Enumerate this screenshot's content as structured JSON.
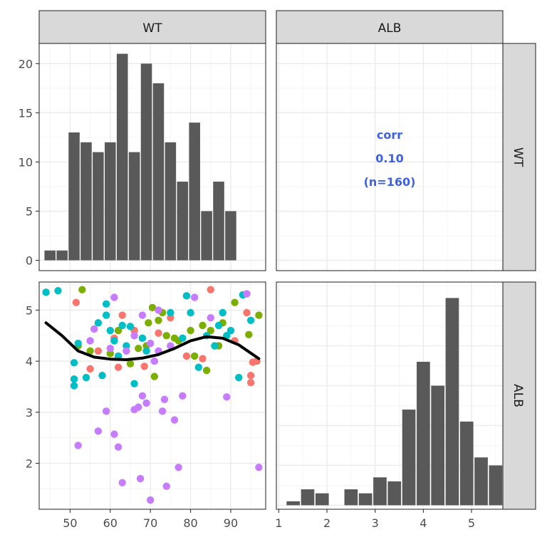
{
  "strips": {
    "col1": "WT",
    "col2": "ALB",
    "row1": "WT",
    "row2": "ALB"
  },
  "corr_text": {
    "label": "corr",
    "value": "0.10",
    "n": "(n=160)"
  },
  "colors": {
    "bar": "#595959",
    "smooth": "#000000",
    "corr": "#3d61e6",
    "groups": [
      "#F8766D",
      "#7CAE00",
      "#00BFC4",
      "#C77CFF"
    ]
  },
  "chart_data": [
    {
      "panel": "WT-WT",
      "type": "bar",
      "x_centers": [
        45,
        48,
        51,
        54,
        57,
        60,
        63,
        66,
        69,
        72,
        75,
        78,
        81,
        84,
        87,
        90,
        93
      ],
      "values": [
        1,
        1,
        13,
        12,
        11,
        12,
        21,
        11,
        20,
        18,
        12,
        8,
        14,
        5,
        8,
        5,
        0
      ],
      "xlim": [
        42.3,
        98.7
      ],
      "ylim": [
        -1.05,
        22.05
      ],
      "xticks": [
        50,
        60,
        70,
        80,
        90
      ],
      "yticks": [
        0,
        5,
        10,
        15,
        20
      ]
    },
    {
      "panel": "WT-ALB",
      "type": "text",
      "text": [
        "corr",
        "0.10",
        "(n=160)"
      ]
    },
    {
      "panel": "ALB-WT",
      "type": "scatter",
      "x_label_var": "WT",
      "y_label_var": "ALB",
      "xlim": [
        42.3,
        98.7
      ],
      "ylim": [
        1.1,
        5.55
      ],
      "xticks": [
        50,
        60,
        70,
        80,
        90
      ],
      "yticks": [
        2,
        3,
        4,
        5
      ],
      "series": [
        {
          "group": 1,
          "points": [
            [
              51.5,
              5.15
            ],
            [
              61,
              4.45
            ],
            [
              63,
              4.9
            ],
            [
              66,
              4.6
            ],
            [
              62,
              3.88
            ],
            [
              72,
              4.55
            ],
            [
              75,
              4.85
            ],
            [
              85,
              5.4
            ],
            [
              91,
              4.4
            ],
            [
              94,
              4.95
            ],
            [
              95,
              3.72
            ],
            [
              95,
              3.58
            ],
            [
              95.5,
              3.98
            ],
            [
              96.5,
              4.0
            ],
            [
              68.5,
              3.9
            ],
            [
              57,
              4.2
            ],
            [
              55,
              3.85
            ],
            [
              83,
              4.05
            ],
            [
              79,
              4.1
            ]
          ]
        },
        {
          "group": 2,
          "points": [
            [
              53,
              5.4
            ],
            [
              69.5,
              4.75
            ],
            [
              70.5,
              5.05
            ],
            [
              72,
              4.8
            ],
            [
              74,
              4.5
            ],
            [
              76,
              4.45
            ],
            [
              81,
              4.1
            ],
            [
              83,
              4.7
            ],
            [
              85,
              4.6
            ],
            [
              88,
              4.75
            ],
            [
              91,
              5.15
            ],
            [
              94.5,
              4.52
            ],
            [
              97,
              4.9
            ],
            [
              69,
              4.3
            ],
            [
              71,
              3.7
            ],
            [
              55,
              4.2
            ],
            [
              52,
              4.3
            ],
            [
              60,
              4.15
            ],
            [
              65,
              3.95
            ],
            [
              73,
              4.95
            ],
            [
              80,
              4.6
            ],
            [
              84,
              3.82
            ],
            [
              87,
              4.3
            ],
            [
              77,
              4.4
            ],
            [
              62,
              4.6
            ],
            [
              67,
              4.25
            ]
          ]
        },
        {
          "group": 3,
          "points": [
            [
              44,
              5.35
            ],
            [
              47,
              5.38
            ],
            [
              51,
              3.65
            ],
            [
              51,
              3.52
            ],
            [
              51,
              3.97
            ],
            [
              52,
              4.35
            ],
            [
              54,
              3.68
            ],
            [
              57,
              4.75
            ],
            [
              59,
              4.9
            ],
            [
              59,
              5.12
            ],
            [
              60,
              4.6
            ],
            [
              61,
              4.4
            ],
            [
              63,
              4.7
            ],
            [
              64,
              4.3
            ],
            [
              66,
              3.56
            ],
            [
              68,
              4.45
            ],
            [
              69,
              4.2
            ],
            [
              75,
              4.95
            ],
            [
              78,
              4.45
            ],
            [
              79,
              5.28
            ],
            [
              80,
              4.95
            ],
            [
              82,
              3.88
            ],
            [
              84,
              4.5
            ],
            [
              87,
              4.7
            ],
            [
              88,
              4.95
            ],
            [
              89,
              4.5
            ],
            [
              90,
              4.6
            ],
            [
              92,
              3.68
            ],
            [
              93,
              5.3
            ],
            [
              95,
              4.8
            ],
            [
              58,
              3.72
            ],
            [
              62,
              4.1
            ],
            [
              65,
              4.68
            ],
            [
              86,
              4.3
            ]
          ]
        },
        {
          "group": 4,
          "points": [
            [
              52,
              2.35
            ],
            [
              56,
              4.63
            ],
            [
              55,
              4.4
            ],
            [
              57,
              2.63
            ],
            [
              59,
              3.02
            ],
            [
              60,
              4.25
            ],
            [
              61,
              5.25
            ],
            [
              61,
              2.57
            ],
            [
              62,
              2.32
            ],
            [
              63,
              1.62
            ],
            [
              66,
              3.05
            ],
            [
              67,
              3.1
            ],
            [
              67.5,
              1.7
            ],
            [
              68,
              3.32
            ],
            [
              69,
              3.18
            ],
            [
              70,
              1.28
            ],
            [
              71,
              4.0
            ],
            [
              72,
              4.2
            ],
            [
              73,
              3.02
            ],
            [
              73.5,
              3.25
            ],
            [
              74,
              1.55
            ],
            [
              76,
              2.85
            ],
            [
              77,
              1.92
            ],
            [
              78,
              3.32
            ],
            [
              81,
              5.25
            ],
            [
              85,
              4.85
            ],
            [
              89,
              3.3
            ],
            [
              94,
              5.32
            ],
            [
              97,
              1.92
            ],
            [
              66,
              4.5
            ],
            [
              70,
              4.35
            ],
            [
              64,
              4.2
            ],
            [
              75,
              4.3
            ],
            [
              72,
              5.0
            ],
            [
              68,
              4.9
            ]
          ]
        }
      ],
      "smooth": {
        "x": [
          44,
          48,
          52,
          56,
          60,
          64,
          68,
          72,
          76,
          80,
          84,
          88,
          92,
          97
        ],
        "y": [
          4.75,
          4.5,
          4.2,
          4.08,
          4.04,
          4.03,
          4.06,
          4.13,
          4.25,
          4.4,
          4.48,
          4.45,
          4.32,
          4.05
        ]
      }
    },
    {
      "panel": "ALB-ALB",
      "type": "bar",
      "x_centers": [
        1.3,
        1.6,
        1.9,
        2.2,
        2.5,
        2.8,
        3.1,
        3.4,
        3.7,
        4.0,
        4.3,
        4.6,
        4.9,
        5.2,
        5.5
      ],
      "values": [
        1,
        4,
        3,
        0,
        4,
        3,
        7,
        6,
        24,
        36,
        30,
        52,
        21,
        12,
        10
      ],
      "xlim": [
        0.95,
        5.65
      ],
      "ylim": [
        -1,
        56
      ],
      "xticks": [
        1,
        2,
        3,
        4,
        5
      ]
    }
  ]
}
